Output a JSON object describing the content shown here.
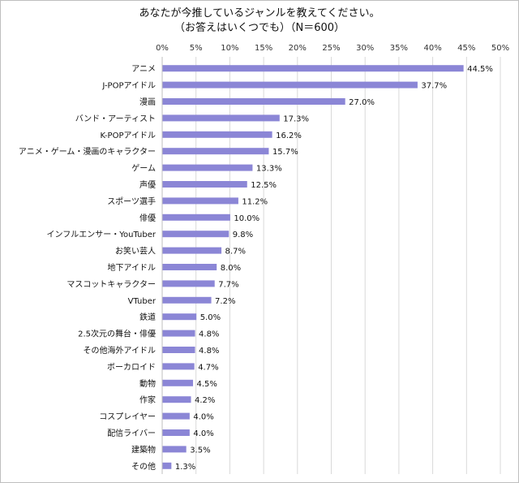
{
  "chart_data": {
    "type": "bar",
    "orientation": "horizontal",
    "title": "あなたが今推しているジャンルを教えてください。",
    "subtitle": "（お答えはいくつでも）（N＝600）",
    "bar_color": "#8B86D6",
    "xlim": [
      0,
      50
    ],
    "xticks": [
      "0%",
      "5%",
      "10%",
      "15%",
      "20%",
      "25%",
      "30%",
      "35%",
      "40%",
      "45%",
      "50%"
    ],
    "grid": true,
    "categories": [
      "アニメ",
      "J-POPアイドル",
      "漫画",
      "バンド・アーティスト",
      "K-POPアイドル",
      "アニメ・ゲーム・漫画のキャラクター",
      "ゲーム",
      "声優",
      "スポーツ選手",
      "俳優",
      "インフルエンサー・YouTuber",
      "お笑い芸人",
      "地下アイドル",
      "マスコットキャラクター",
      "VTuber",
      "鉄道",
      "2.5次元の舞台・俳優",
      "その他海外アイドル",
      "ボーカロイド",
      "動物",
      "作家",
      "コスプレイヤー",
      "配信ライバー",
      "建築物",
      "その他"
    ],
    "values": [
      44.5,
      37.7,
      27.0,
      17.3,
      16.2,
      15.7,
      13.3,
      12.5,
      11.2,
      10.0,
      9.8,
      8.7,
      8.0,
      7.7,
      7.2,
      5.0,
      4.8,
      4.8,
      4.7,
      4.5,
      4.2,
      4.0,
      4.0,
      3.5,
      1.3
    ],
    "labels": [
      "44.5%",
      "37.7%",
      "27.0%",
      "17.3%",
      "16.2%",
      "15.7%",
      "13.3%",
      "12.5%",
      "11.2%",
      "10.0%",
      "9.8%",
      "8.7%",
      "8.0%",
      "7.7%",
      "7.2%",
      "5.0%",
      "4.8%",
      "4.8%",
      "4.7%",
      "4.5%",
      "4.2%",
      "4.0%",
      "4.0%",
      "3.5%",
      "1.3%"
    ]
  }
}
